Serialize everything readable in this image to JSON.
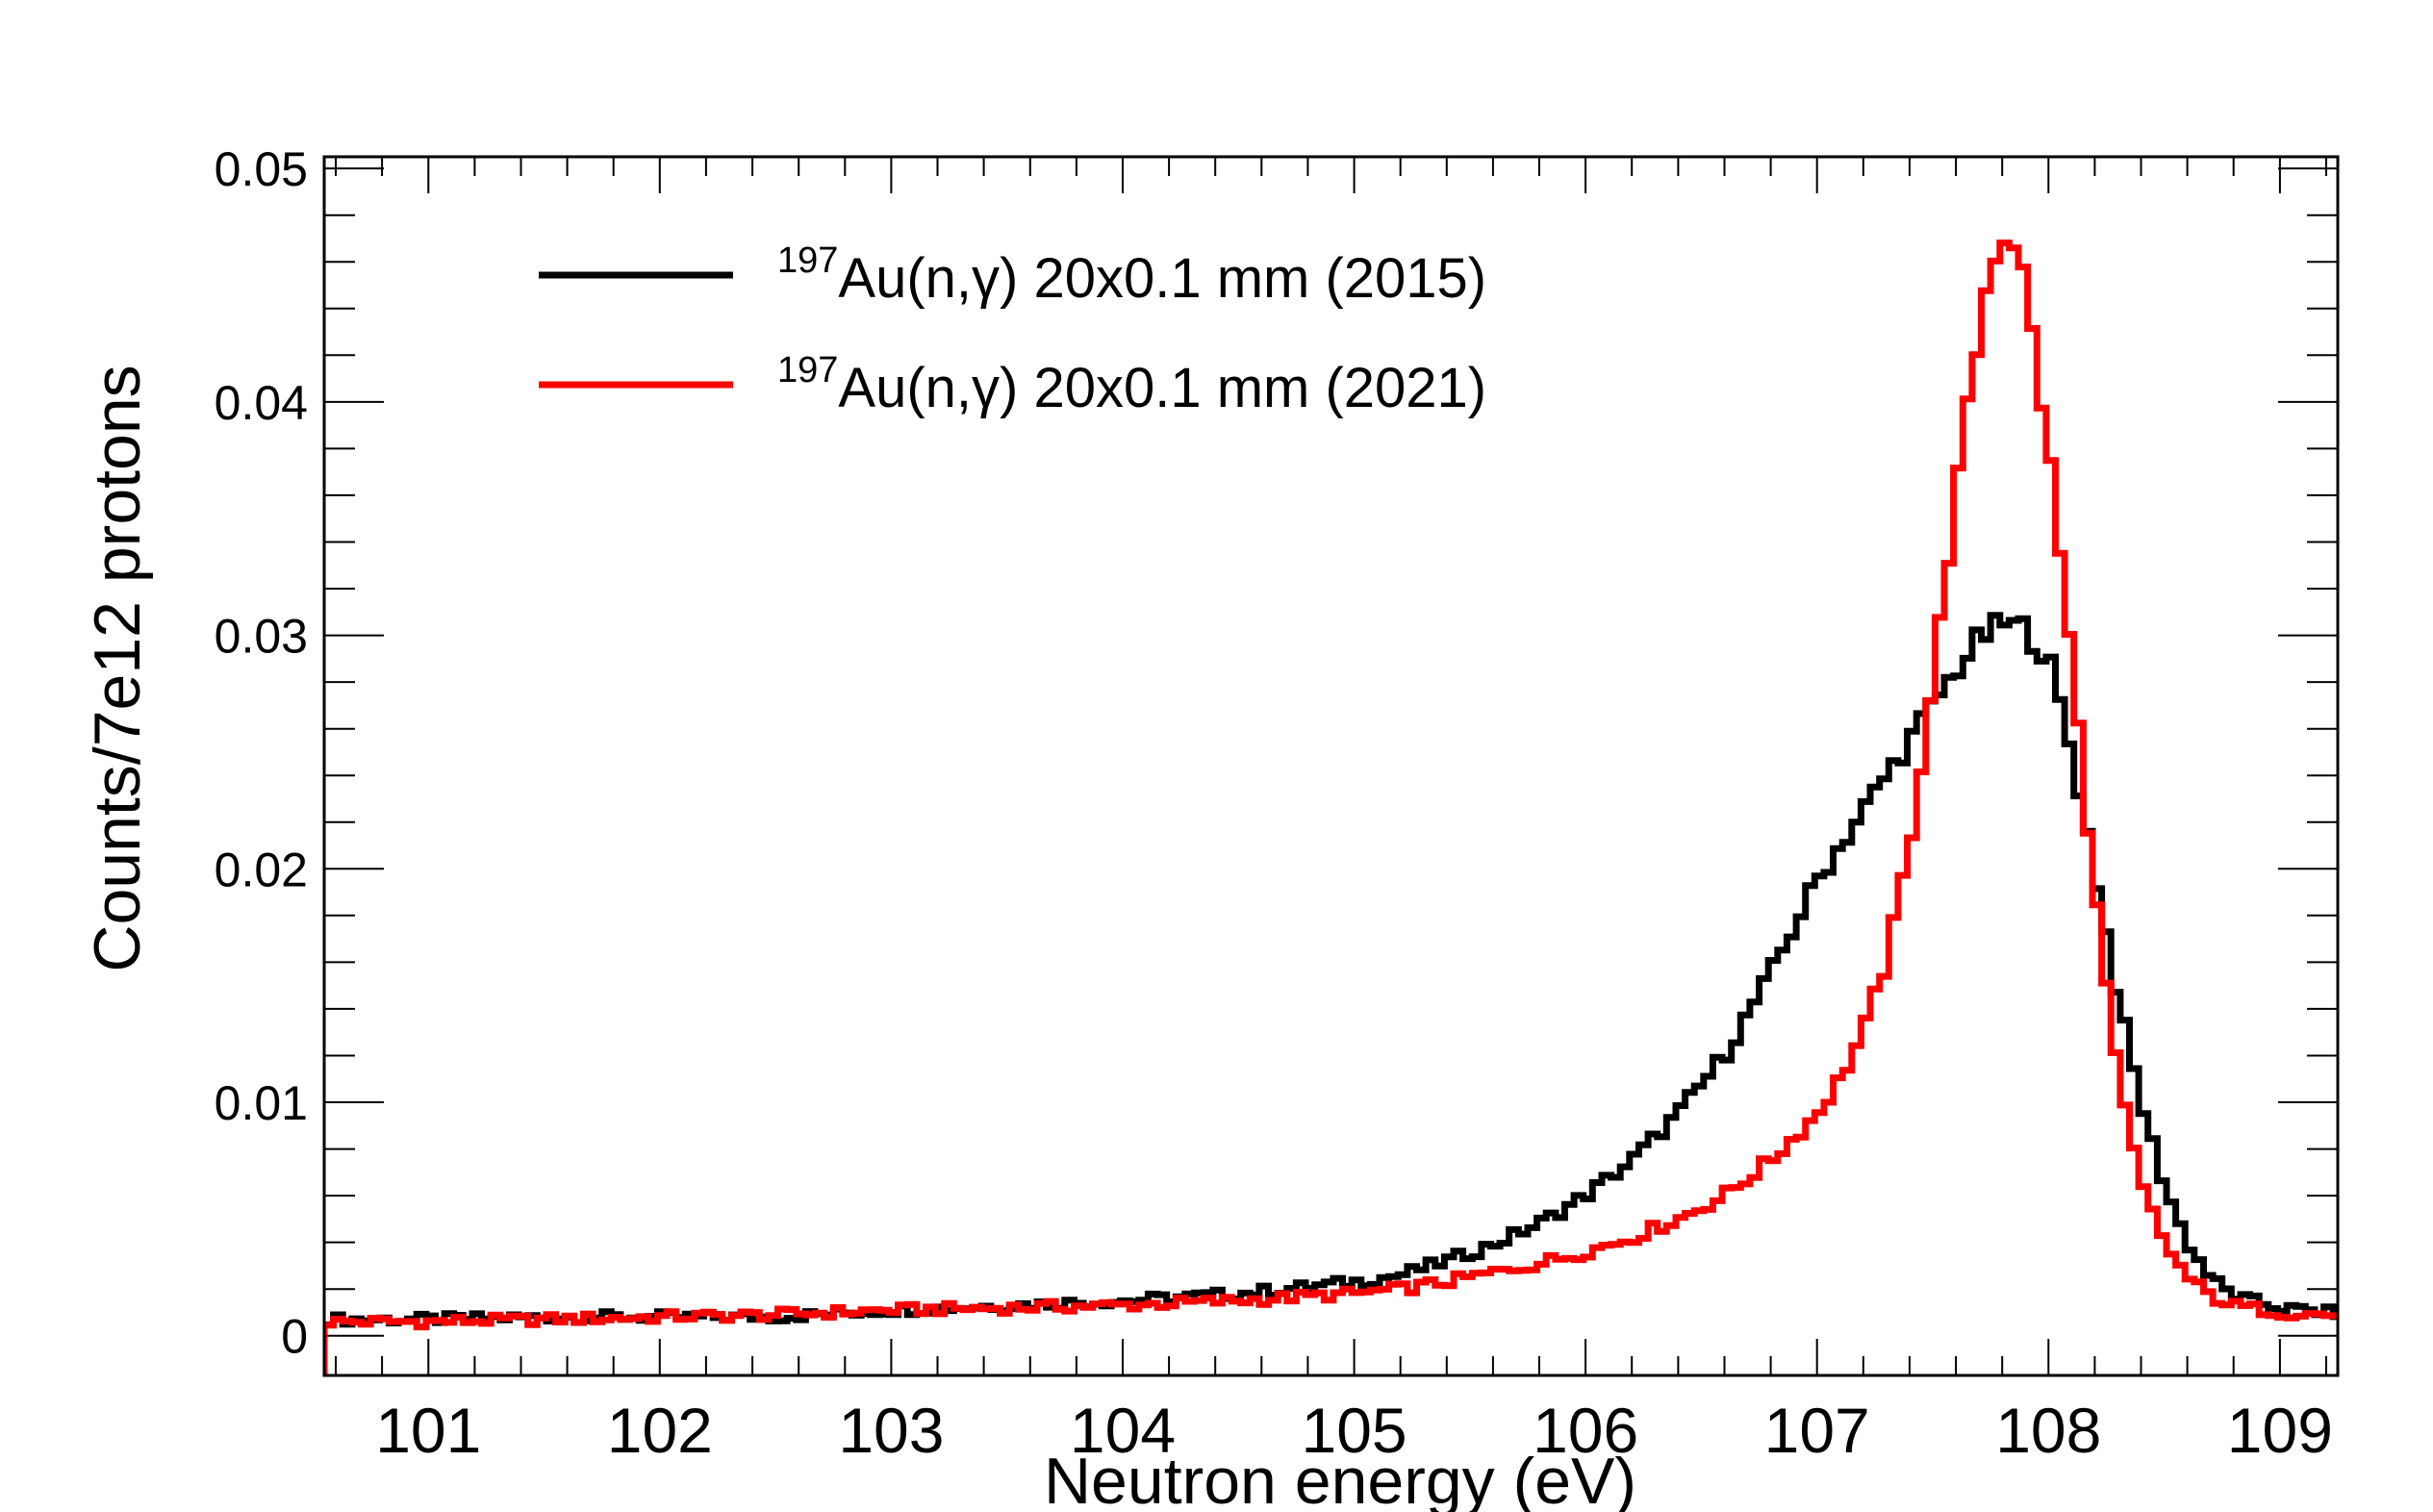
{
  "chart_data": {
    "type": "line",
    "title": "",
    "xlabel": "Neutron energy (eV)",
    "ylabel": "Counts/7e12 protons",
    "xlim": [
      100.55,
      109.25
    ],
    "ylim": [
      -0.0017,
      0.0505
    ],
    "x_ticks": [
      101,
      102,
      103,
      104,
      105,
      106,
      107,
      108,
      109
    ],
    "x_tick_labels": [
      "101",
      "102",
      "103",
      "104",
      "105",
      "106",
      "107",
      "108",
      "109"
    ],
    "y_ticks": [
      0,
      0.01,
      0.02,
      0.03,
      0.04,
      0.05
    ],
    "y_tick_labels": [
      "0",
      "0.01",
      "0.02",
      "0.03",
      "0.04",
      "0.05"
    ],
    "grid": false,
    "legend_position": "top-left",
    "bin_width": 0.04,
    "series": [
      {
        "name_sup": "197",
        "name": "Au(n,γ) 20x0.1 mm (2015)",
        "color": "#000000",
        "x": [
          100.6,
          101.0,
          101.5,
          102.0,
          102.5,
          103.0,
          103.5,
          104.0,
          104.5,
          105.0,
          105.2,
          105.4,
          105.6,
          105.8,
          106.0,
          106.2,
          106.4,
          106.6,
          106.8,
          107.0,
          107.2,
          107.4,
          107.5,
          107.6,
          107.7,
          107.8,
          107.9,
          108.0,
          108.1,
          108.2,
          108.3,
          108.4,
          108.5,
          108.6,
          108.7,
          108.8,
          109.0,
          109.2
        ],
        "y": [
          0.0007,
          0.0007,
          0.0008,
          0.0008,
          0.0008,
          0.0011,
          0.0013,
          0.0015,
          0.0018,
          0.0023,
          0.0026,
          0.0032,
          0.0039,
          0.0048,
          0.006,
          0.0075,
          0.0095,
          0.012,
          0.0155,
          0.0195,
          0.0225,
          0.0255,
          0.027,
          0.0285,
          0.0298,
          0.0305,
          0.0303,
          0.029,
          0.025,
          0.02,
          0.0145,
          0.01,
          0.0065,
          0.004,
          0.0025,
          0.0017,
          0.0012,
          0.001
        ]
      },
      {
        "name_sup": "197",
        "name": "Au(n,γ) 20x0.1 mm (2021)",
        "color": "#ff0000",
        "x": [
          100.6,
          101.0,
          101.5,
          102.0,
          102.5,
          103.0,
          103.5,
          104.0,
          104.5,
          105.0,
          105.2,
          105.4,
          105.6,
          105.8,
          106.0,
          106.2,
          106.4,
          106.6,
          106.8,
          107.0,
          107.1,
          107.2,
          107.3,
          107.4,
          107.5,
          107.6,
          107.7,
          107.75,
          107.8,
          107.85,
          107.9,
          108.0,
          108.1,
          108.2,
          108.3,
          108.4,
          108.5,
          108.6,
          108.7,
          108.8,
          109.0,
          109.2
        ],
        "y": [
          0.0006,
          0.0006,
          0.0007,
          0.0008,
          0.0009,
          0.0011,
          0.0012,
          0.0013,
          0.0015,
          0.0018,
          0.002,
          0.0023,
          0.0027,
          0.0031,
          0.0036,
          0.0042,
          0.005,
          0.006,
          0.0075,
          0.0095,
          0.011,
          0.013,
          0.016,
          0.021,
          0.028,
          0.036,
          0.043,
          0.046,
          0.0472,
          0.047,
          0.045,
          0.038,
          0.029,
          0.019,
          0.011,
          0.0065,
          0.004,
          0.0025,
          0.0017,
          0.0013,
          0.001,
          0.0009
        ]
      }
    ]
  }
}
